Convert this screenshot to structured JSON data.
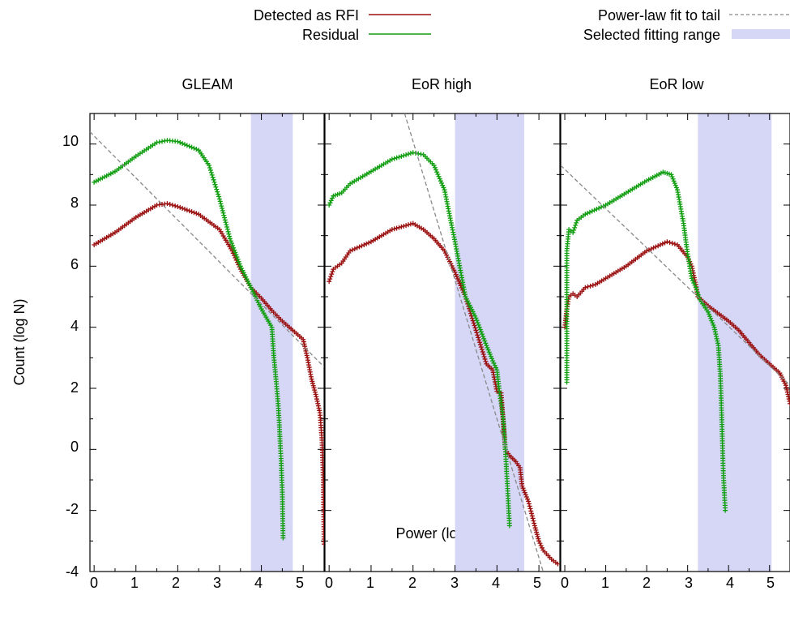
{
  "legend": {
    "detected_label": "Detected as RFI",
    "residual_label": "Residual",
    "fit_label": "Power-law fit to tail",
    "range_label": "Selected fitting range"
  },
  "colors": {
    "detected": "#9b1111",
    "residual": "#119e11",
    "fit": "#888888",
    "range": "#d6d6f7"
  },
  "axes": {
    "ylabel": "Count (log N)",
    "xlabel": "Power (log S)",
    "yticks": [
      "-4",
      "-2",
      "0",
      "2",
      "4",
      "6",
      "8",
      "10"
    ],
    "xticks": [
      "0",
      "1",
      "2",
      "3",
      "4",
      "5"
    ]
  },
  "chart_data": [
    {
      "type": "scatter",
      "title": "GLEAM",
      "xlim": [
        -0.1,
        5.5
      ],
      "ylim": [
        -4,
        11
      ],
      "fitting_range": [
        3.75,
        4.75
      ],
      "fit_line": [
        [
          -0.1,
          10.4
        ],
        [
          5.5,
          2.7
        ]
      ],
      "series": [
        {
          "name": "Detected as RFI",
          "color_key": "detected",
          "points": [
            [
              0,
              6.7
            ],
            [
              0.5,
              7.1
            ],
            [
              1,
              7.6
            ],
            [
              1.5,
              8.0
            ],
            [
              1.75,
              8.05
            ],
            [
              2,
              7.95
            ],
            [
              2.5,
              7.7
            ],
            [
              3,
              7.2
            ],
            [
              3.3,
              6.5
            ],
            [
              3.5,
              5.9
            ],
            [
              3.75,
              5.3
            ],
            [
              4,
              4.95
            ],
            [
              4.25,
              4.55
            ],
            [
              4.5,
              4.2
            ],
            [
              4.75,
              3.9
            ],
            [
              5,
              3.6
            ],
            [
              5.1,
              3.0
            ],
            [
              5.2,
              2.3
            ],
            [
              5.3,
              1.8
            ],
            [
              5.4,
              1.2
            ],
            [
              5.45,
              0.3
            ],
            [
              5.48,
              -1.0
            ],
            [
              5.5,
              -3.1
            ]
          ]
        },
        {
          "name": "Residual",
          "color_key": "residual",
          "points": [
            [
              0,
              8.75
            ],
            [
              0.5,
              9.1
            ],
            [
              1,
              9.6
            ],
            [
              1.5,
              10.05
            ],
            [
              1.75,
              10.12
            ],
            [
              2,
              10.08
            ],
            [
              2.5,
              9.8
            ],
            [
              2.75,
              9.3
            ],
            [
              3,
              8.2
            ],
            [
              3.25,
              6.9
            ],
            [
              3.5,
              6.0
            ],
            [
              3.75,
              5.3
            ],
            [
              4,
              4.6
            ],
            [
              4.25,
              4.0
            ],
            [
              4.3,
              3.0
            ],
            [
              4.35,
              2.3
            ],
            [
              4.4,
              1.5
            ],
            [
              4.43,
              0.8
            ],
            [
              4.45,
              0.2
            ],
            [
              4.47,
              -0.3
            ],
            [
              4.5,
              -1.4
            ],
            [
              4.52,
              -2.9
            ]
          ]
        }
      ]
    },
    {
      "type": "scatter",
      "title": "EoR high",
      "xlim": [
        -0.1,
        5.5
      ],
      "ylim": [
        -4,
        11
      ],
      "fitting_range": [
        3.0,
        4.65
      ],
      "fit_line": [
        [
          1.8,
          11
        ],
        [
          5.1,
          -4
        ]
      ],
      "series": [
        {
          "name": "Detected as RFI",
          "color_key": "detected",
          "points": [
            [
              0,
              5.5
            ],
            [
              0.1,
              5.9
            ],
            [
              0.3,
              6.1
            ],
            [
              0.5,
              6.5
            ],
            [
              1,
              6.8
            ],
            [
              1.5,
              7.2
            ],
            [
              2,
              7.4
            ],
            [
              2.25,
              7.2
            ],
            [
              2.5,
              6.9
            ],
            [
              2.75,
              6.5
            ],
            [
              3,
              5.8
            ],
            [
              3.25,
              5.0
            ],
            [
              3.5,
              3.9
            ],
            [
              3.75,
              2.8
            ],
            [
              3.9,
              2.6
            ],
            [
              4.0,
              1.9
            ],
            [
              4.1,
              1.85
            ],
            [
              4.15,
              0.9
            ],
            [
              4.2,
              0.0
            ],
            [
              4.3,
              -0.2
            ],
            [
              4.45,
              -0.4
            ],
            [
              4.55,
              -0.6
            ],
            [
              4.6,
              -1.2
            ],
            [
              4.75,
              -1.7
            ],
            [
              4.9,
              -2.5
            ],
            [
              5.0,
              -3.0
            ],
            [
              5.1,
              -3.3
            ],
            [
              5.3,
              -3.6
            ],
            [
              5.45,
              -3.75
            ]
          ]
        },
        {
          "name": "Residual",
          "color_key": "residual",
          "points": [
            [
              0,
              8.0
            ],
            [
              0.1,
              8.3
            ],
            [
              0.3,
              8.4
            ],
            [
              0.5,
              8.7
            ],
            [
              1,
              9.1
            ],
            [
              1.5,
              9.5
            ],
            [
              2,
              9.72
            ],
            [
              2.25,
              9.65
            ],
            [
              2.5,
              9.3
            ],
            [
              2.75,
              8.5
            ],
            [
              3,
              6.8
            ],
            [
              3.25,
              5.0
            ],
            [
              3.5,
              4.3
            ],
            [
              3.75,
              3.4
            ],
            [
              3.9,
              2.9
            ],
            [
              4.0,
              2.6
            ],
            [
              4.05,
              2.0
            ],
            [
              4.1,
              1.5
            ],
            [
              4.15,
              1.0
            ],
            [
              4.2,
              0.0
            ],
            [
              4.25,
              -1.2
            ],
            [
              4.3,
              -2.5
            ]
          ]
        }
      ]
    },
    {
      "type": "scatter",
      "title": "EoR low",
      "xlim": [
        -0.1,
        5.5
      ],
      "ylim": [
        -4,
        11
      ],
      "fitting_range": [
        3.25,
        5.05
      ],
      "fit_line": [
        [
          -0.1,
          9.3
        ],
        [
          5.5,
          2.1
        ]
      ],
      "series": [
        {
          "name": "Detected as RFI",
          "color_key": "detected",
          "points": [
            [
              0,
              4.0
            ],
            [
              0.05,
              4.6
            ],
            [
              0.1,
              5.0
            ],
            [
              0.2,
              5.1
            ],
            [
              0.3,
              5.0
            ],
            [
              0.5,
              5.3
            ],
            [
              0.75,
              5.4
            ],
            [
              1,
              5.6
            ],
            [
              1.5,
              6.0
            ],
            [
              2,
              6.5
            ],
            [
              2.5,
              6.8
            ],
            [
              2.75,
              6.7
            ],
            [
              3,
              6.3
            ],
            [
              3.1,
              6.0
            ],
            [
              3.2,
              5.4
            ],
            [
              3.25,
              5.0
            ],
            [
              3.5,
              4.7
            ],
            [
              4,
              4.2
            ],
            [
              4.25,
              3.9
            ],
            [
              4.5,
              3.5
            ],
            [
              4.75,
              3.1
            ],
            [
              5,
              2.8
            ],
            [
              5.25,
              2.5
            ],
            [
              5.4,
              2.1
            ],
            [
              5.5,
              1.5
            ]
          ]
        },
        {
          "name": "Residual",
          "color_key": "residual",
          "points": [
            [
              0.05,
              2.2
            ],
            [
              0.05,
              6.5
            ],
            [
              0.1,
              7.2
            ],
            [
              0.2,
              7.1
            ],
            [
              0.3,
              7.5
            ],
            [
              0.5,
              7.7
            ],
            [
              1,
              8.0
            ],
            [
              1.5,
              8.4
            ],
            [
              2,
              8.8
            ],
            [
              2.4,
              9.08
            ],
            [
              2.6,
              9.0
            ],
            [
              2.75,
              8.5
            ],
            [
              2.9,
              7.4
            ],
            [
              3,
              6.4
            ],
            [
              3.1,
              5.6
            ],
            [
              3.2,
              5.3
            ],
            [
              3.3,
              4.9
            ],
            [
              3.5,
              4.5
            ],
            [
              3.65,
              4.0
            ],
            [
              3.75,
              3.4
            ],
            [
              3.8,
              2.4
            ],
            [
              3.83,
              1.2
            ],
            [
              3.85,
              0.2
            ],
            [
              3.87,
              -0.7
            ],
            [
              3.9,
              -1.5
            ],
            [
              3.92,
              -2.0
            ]
          ]
        }
      ]
    }
  ]
}
